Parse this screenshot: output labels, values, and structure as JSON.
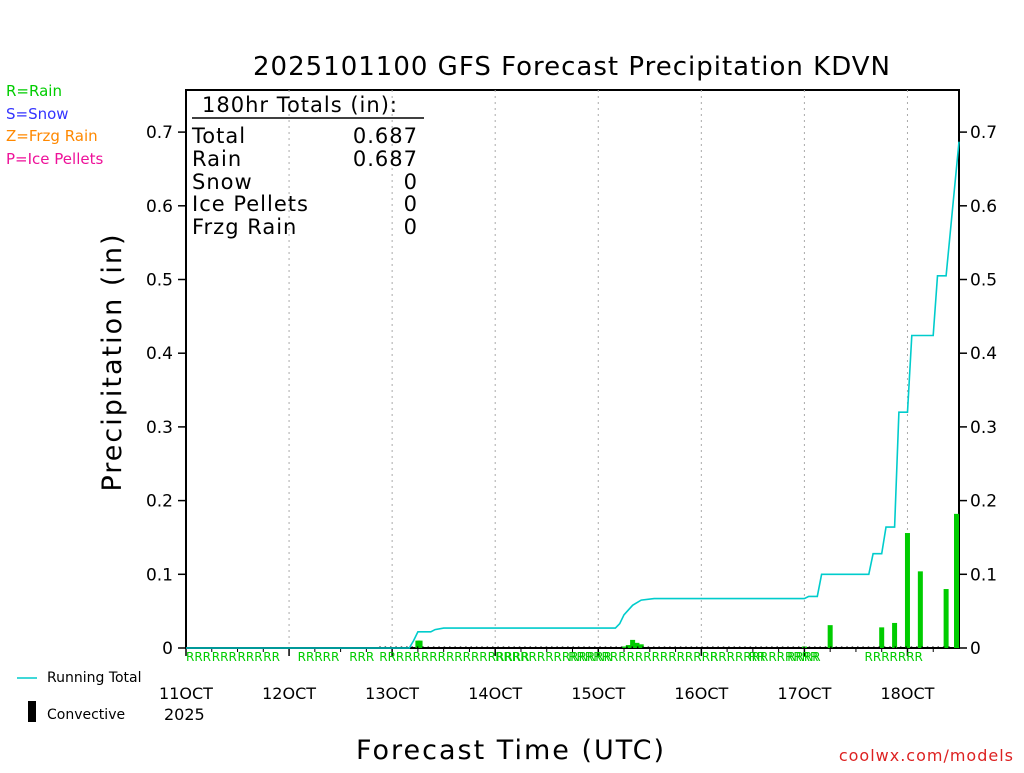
{
  "chart_data": {
    "type": "bar+line",
    "title": "2025101100 GFS Forecast Precipitation KDVN",
    "ylabel": "Precipitation (in)",
    "xlabel": "Forecast Time (UTC)",
    "ylim": [
      0,
      0.75
    ],
    "yticks": [
      0,
      0.1,
      0.2,
      0.3,
      0.4,
      0.5,
      0.6,
      0.7
    ],
    "ytick_labels": [
      "0",
      "0.1",
      "0.2",
      "0.3",
      "0.4",
      "0.5",
      "0.6",
      "0.7"
    ],
    "xlim_hours": [
      0,
      180
    ],
    "xticks": [
      {
        "label": "11OCT",
        "hour": 0
      },
      {
        "label": "12OCT",
        "hour": 24
      },
      {
        "label": "13OCT",
        "hour": 48
      },
      {
        "label": "14OCT",
        "hour": 72
      },
      {
        "label": "15OCT",
        "hour": 96
      },
      {
        "label": "16OCT",
        "hour": 120
      },
      {
        "label": "17OCT",
        "hour": 144
      },
      {
        "label": "18OCT",
        "hour": 168
      }
    ],
    "year_label": "2025",
    "ptype_legend": [
      {
        "label": "R=Rain",
        "color": "#00cc00"
      },
      {
        "label": "S=Snow",
        "color": "#3333ff"
      },
      {
        "label": "Z=Frzg Rain",
        "color": "#ff8800"
      },
      {
        "label": "P=Ice Pellets",
        "color": "#ee1199"
      }
    ],
    "totals_box": {
      "header": "180hr Totals (in):",
      "rows": [
        {
          "label": "Total",
          "value": "0.687"
        },
        {
          "label": "Rain",
          "value": "0.687"
        },
        {
          "label": "Snow",
          "value": "0"
        },
        {
          "label": "Ice Pellets",
          "value": "0"
        },
        {
          "label": "Frzg Rain",
          "value": "0"
        }
      ]
    },
    "series_legend": {
      "running_total": "Running Total",
      "convective": "Convective"
    },
    "colors": {
      "bars": "#00cc00",
      "running_total": "#00cccc",
      "convective": "#000000",
      "grid": "#aaaaaa"
    },
    "bars": [
      {
        "hour": 54,
        "value": 0.01
      },
      {
        "hour": 54.5,
        "value": 0.01
      },
      {
        "hour": 102,
        "value": 0.002
      },
      {
        "hour": 103,
        "value": 0.004
      },
      {
        "hour": 104,
        "value": 0.011
      },
      {
        "hour": 105,
        "value": 0.007
      },
      {
        "hour": 106,
        "value": 0.005
      },
      {
        "hour": 144,
        "value": 0.002
      },
      {
        "hour": 150,
        "value": 0.031
      },
      {
        "hour": 162,
        "value": 0.028
      },
      {
        "hour": 165,
        "value": 0.034
      },
      {
        "hour": 168,
        "value": 0.156
      },
      {
        "hour": 171,
        "value": 0.104
      },
      {
        "hour": 177,
        "value": 0.08
      },
      {
        "hour": 180,
        "value": 0.182
      }
    ],
    "running_total": [
      {
        "hour": 0,
        "value": 0
      },
      {
        "hour": 52,
        "value": 0
      },
      {
        "hour": 53,
        "value": 0.01
      },
      {
        "hour": 54,
        "value": 0.022
      },
      {
        "hour": 57,
        "value": 0.022
      },
      {
        "hour": 58,
        "value": 0.025
      },
      {
        "hour": 60,
        "value": 0.027
      },
      {
        "hour": 100,
        "value": 0.027
      },
      {
        "hour": 101,
        "value": 0.033
      },
      {
        "hour": 102,
        "value": 0.045
      },
      {
        "hour": 104,
        "value": 0.058
      },
      {
        "hour": 106,
        "value": 0.065
      },
      {
        "hour": 109,
        "value": 0.067
      },
      {
        "hour": 144,
        "value": 0.067
      },
      {
        "hour": 145,
        "value": 0.07
      },
      {
        "hour": 147,
        "value": 0.07
      },
      {
        "hour": 148,
        "value": 0.1
      },
      {
        "hour": 159,
        "value": 0.1
      },
      {
        "hour": 160,
        "value": 0.128
      },
      {
        "hour": 162,
        "value": 0.128
      },
      {
        "hour": 163,
        "value": 0.164
      },
      {
        "hour": 165,
        "value": 0.164
      },
      {
        "hour": 166,
        "value": 0.32
      },
      {
        "hour": 168,
        "value": 0.32
      },
      {
        "hour": 169,
        "value": 0.424
      },
      {
        "hour": 174,
        "value": 0.424
      },
      {
        "hour": 175,
        "value": 0.505
      },
      {
        "hour": 177,
        "value": 0.505
      },
      {
        "hour": 180,
        "value": 0.687
      }
    ],
    "rain_marks": [
      {
        "text": "RRR",
        "hour": 0
      },
      {
        "text": "RRR",
        "hour": 6
      },
      {
        "text": "RRR",
        "hour": 12
      },
      {
        "text": "RR",
        "hour": 18
      },
      {
        "text": "RRRRR",
        "hour": 26
      },
      {
        "text": "RRR",
        "hour": 38
      },
      {
        "text": "RRRRRRRRRRRRRRRRRR",
        "hour": 45
      },
      {
        "text": "RRRRRRRRRRRRRR",
        "hour": 72
      },
      {
        "text": "RRRRRRRRRRRRRRRRRRRRRRRRRRRRRR",
        "hour": 89
      },
      {
        "text": "R",
        "hour": 122
      },
      {
        "text": "RR",
        "hour": 131
      },
      {
        "text": "RRRR",
        "hour": 140
      },
      {
        "text": "RRRRRRR",
        "hour": 158
      }
    ]
  },
  "credit": "coolwx.com/models"
}
